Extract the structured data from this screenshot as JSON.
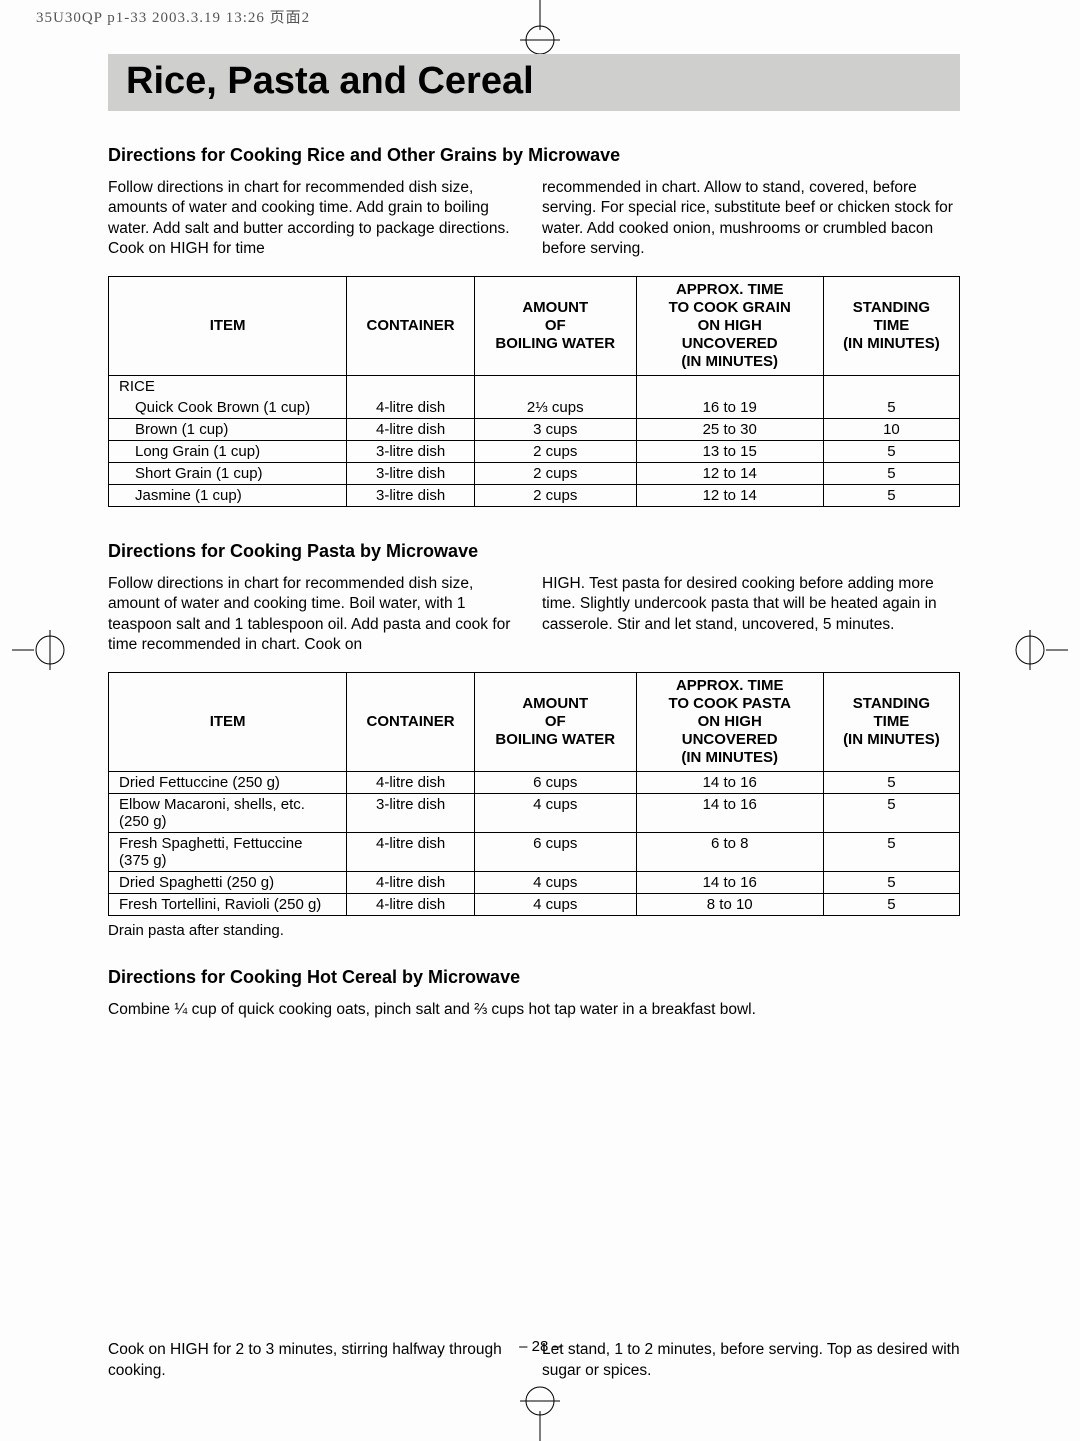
{
  "print_header": "35U30QP p1-33  2003.3.19 13:26  页面2",
  "title": "Rice, Pasta and Cereal",
  "page_number": "– 28 –",
  "section1": {
    "heading": "Directions for Cooking Rice and Other Grains by Microwave",
    "para_left": "Follow directions in chart for recommended dish size, amounts of water and cooking time. Add grain to boiling water. Add salt and butter according to package directions. Cook on HIGH for time",
    "para_right": "recommended in chart. Allow to stand, covered, before serving. For special rice, substitute beef or chicken stock for water. Add cooked onion, mushrooms or crumbled bacon before serving."
  },
  "table1": {
    "headers": {
      "item": "Item",
      "container": "Container",
      "amount": "Amount\nof\nBoiling Water",
      "time": "Approx. Time\nTo Cook Grain\non HIGH\nUncovered\n(in minutes)",
      "stand": "Standing\nTime\n(in minutes)"
    },
    "group_label": "RICE",
    "rows": [
      {
        "item": "Quick Cook Brown (1 cup)",
        "container": "4-litre dish",
        "amount": "2⅓ cups",
        "time": "16 to 19",
        "stand": "5"
      },
      {
        "item": "Brown (1 cup)",
        "container": "4-litre dish",
        "amount": "3 cups",
        "time": "25 to 30",
        "stand": "10"
      },
      {
        "item": "Long Grain (1 cup)",
        "container": "3-litre dish",
        "amount": "2 cups",
        "time": "13 to 15",
        "stand": "5"
      },
      {
        "item": "Short Grain (1 cup)",
        "container": "3-litre dish",
        "amount": "2 cups",
        "time": "12 to 14",
        "stand": "5"
      },
      {
        "item": "Jasmine (1 cup)",
        "container": "3-litre dish",
        "amount": "2 cups",
        "time": "12 to 14",
        "stand": "5"
      }
    ]
  },
  "section2": {
    "heading": "Directions for Cooking Pasta by Microwave",
    "para_left": "Follow directions in chart for recommended dish size, amount of water and cooking time. Boil water, with 1 teaspoon salt and 1 tablespoon oil. Add pasta and cook for time recommended in chart. Cook on",
    "para_right": "HIGH. Test pasta for desired cooking before adding more time. Slightly undercook pasta that will be heated again in casserole. Stir and let stand, uncovered, 5 minutes."
  },
  "table2": {
    "headers": {
      "item": "Item",
      "container": "Container",
      "amount": "Amount\nof\nBoiling Water",
      "time": "Approx. Time\nTo Cook Pasta\non HIGH\nUncovered\n(in minutes)",
      "stand": "Standing\nTime\n(in minutes)"
    },
    "rows": [
      {
        "item": "Dried Fettuccine (250 g)",
        "container": "4-litre dish",
        "amount": "6 cups",
        "time": "14 to 16",
        "stand": "5"
      },
      {
        "item": "Elbow Macaroni, shells, etc. (250 g)",
        "container": "3-litre dish",
        "amount": "4 cups",
        "time": "14 to 16",
        "stand": "5"
      },
      {
        "item": "Fresh Spaghetti, Fettuccine (375 g)",
        "container": "4-litre dish",
        "amount": "6 cups",
        "time": "6 to 8",
        "stand": "5"
      },
      {
        "item": "Dried Spaghetti (250 g)",
        "container": "4-litre dish",
        "amount": "4 cups",
        "time": "14 to 16",
        "stand": "5"
      },
      {
        "item": "Fresh Tortellini, Ravioli (250 g)",
        "container": "4-litre dish",
        "amount": "4 cups",
        "time": "8 to 10",
        "stand": "5"
      }
    ],
    "note": "Drain pasta after standing."
  },
  "section3": {
    "heading": "Directions for Cooking Hot Cereal by Microwave",
    "line": "Combine ¼ cup of quick cooking oats, pinch salt and ⅔ cups hot tap water in a breakfast bowl.",
    "para_left": "Cook on HIGH for 2 to 3 minutes, stirring halfway through cooking.",
    "para_right": "Let stand, 1 to 2 minutes, before serving. Top as desired with sugar or spices."
  }
}
